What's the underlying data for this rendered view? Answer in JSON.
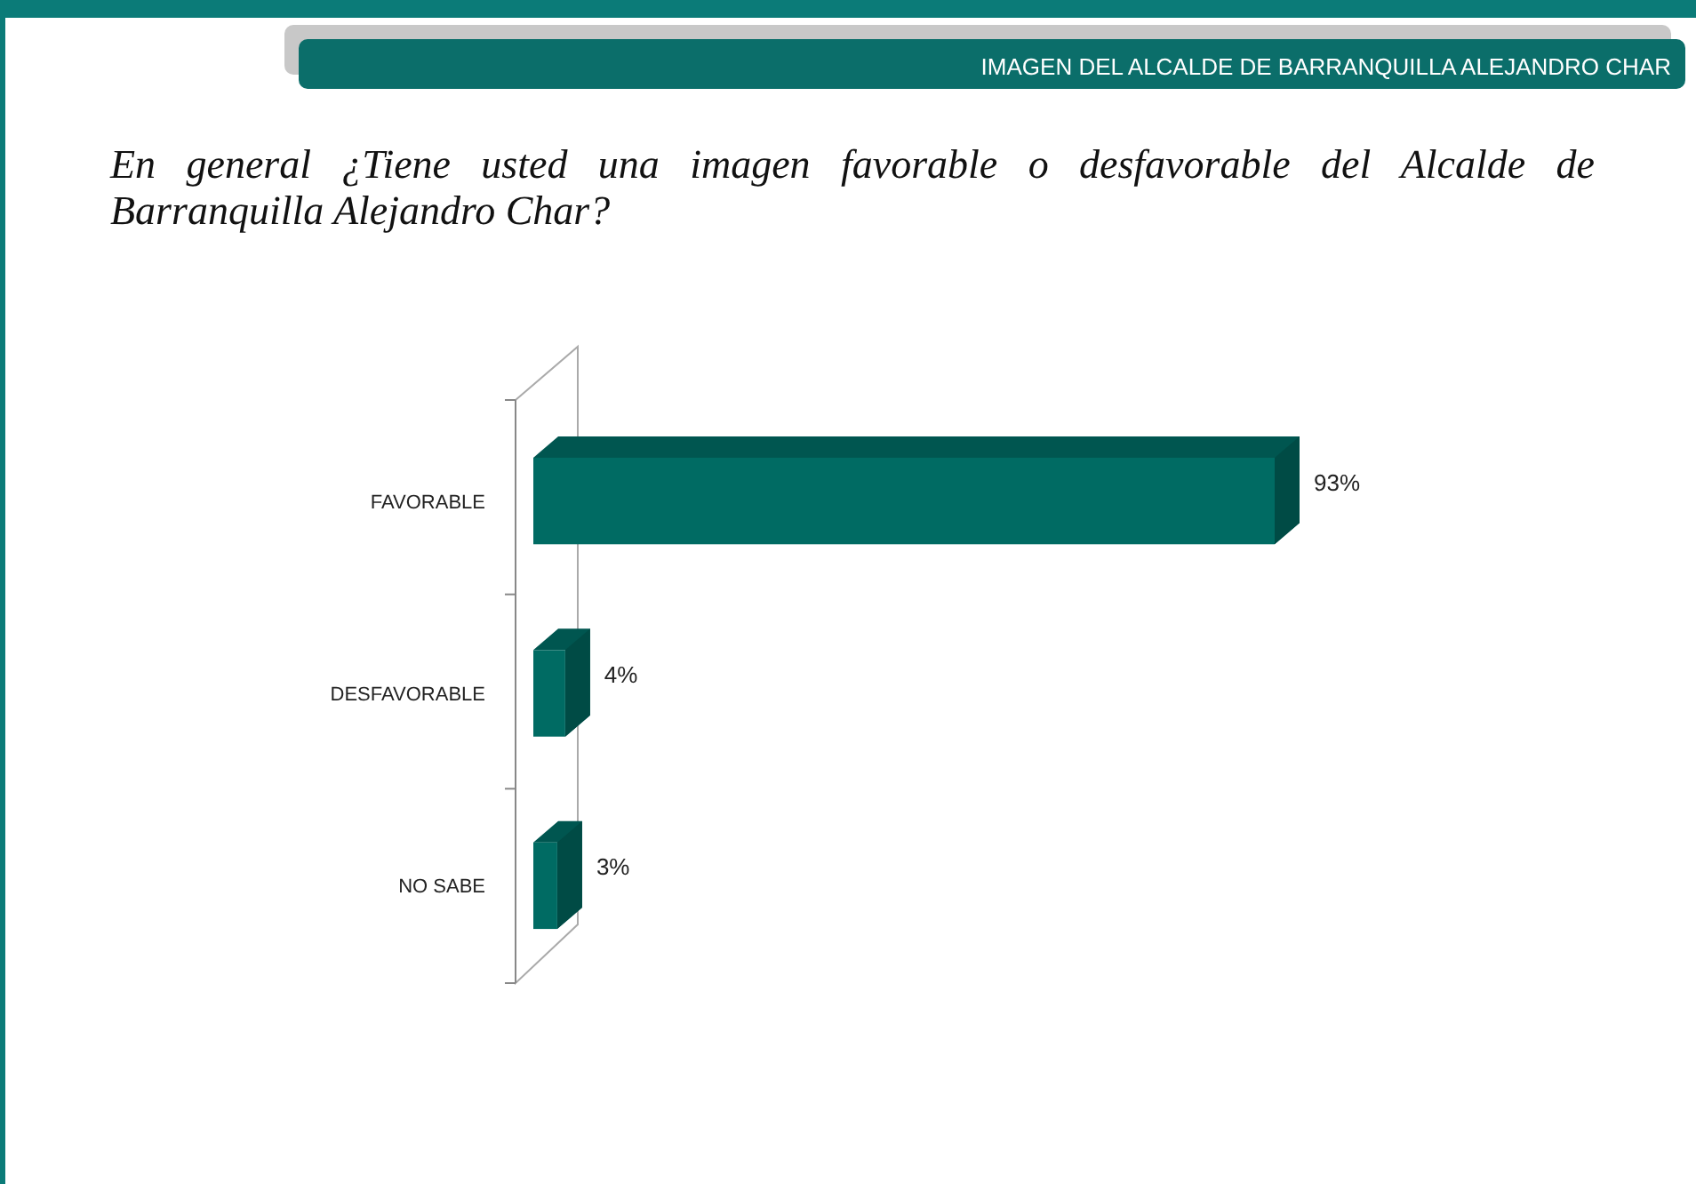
{
  "chart_data": {
    "type": "bar",
    "orientation": "horizontal",
    "title": "IMAGEN DEL ALCALDE DE BARRANQUILLA ALEJANDRO CHAR",
    "subtitle": "En general ¿Tiene usted una imagen favorable o desfavorable del Alcalde de Barranquilla Alejandro Char?",
    "categories": [
      "FAVORABLE",
      "DESFAVORABLE",
      "NO SABE"
    ],
    "values": [
      93,
      4,
      3
    ],
    "color": "#006b63",
    "value_labels": [
      "93%",
      "4%",
      "3%"
    ]
  }
}
